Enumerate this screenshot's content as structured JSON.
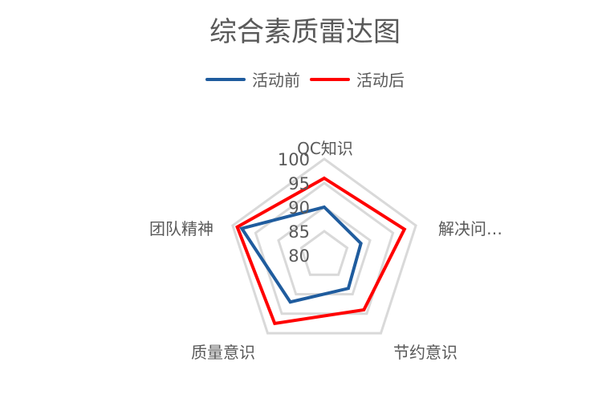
{
  "chart_data": {
    "type": "radar",
    "title": "综合素质雷达图",
    "categories": [
      "QC知识",
      "解决问…",
      "节约意识",
      "质量意识",
      "团队精神"
    ],
    "rlim": [
      80,
      100
    ],
    "ticks": [
      "100",
      "95",
      "90",
      "85",
      "80"
    ],
    "tick_values": [
      100,
      95,
      90,
      85,
      80
    ],
    "grid": true,
    "legend_position": "top",
    "series": [
      {
        "name": "活动前",
        "color": "#1F5C9E",
        "values": [
          90,
          88,
          88.5,
          92,
          98
        ]
      },
      {
        "name": "活动后",
        "color": "#FF0000",
        "values": [
          96,
          97.5,
          94,
          97.5,
          99
        ]
      }
    ],
    "grid_color": "#D9D9D9"
  }
}
